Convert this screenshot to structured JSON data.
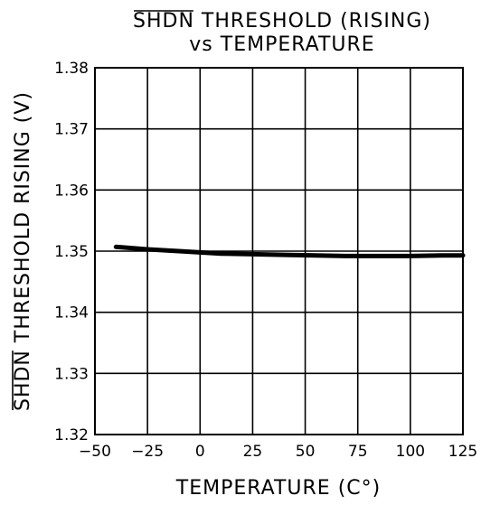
{
  "chart_data": {
    "type": "line",
    "title_overbar": "SHDN",
    "title_line1_rest": " THRESHOLD (RISING)",
    "title_line2": "vs TEMPERATURE",
    "xlabel": "TEMPERATURE (C°)",
    "ylabel_overbar": "SHDN",
    "ylabel_rest": " THRESHOLD RISING (V)",
    "xlim": [
      -50,
      125
    ],
    "ylim": [
      1.32,
      1.38
    ],
    "x_ticks": [
      -50,
      -25,
      0,
      25,
      50,
      75,
      100,
      125
    ],
    "x_tick_labels": [
      "−50",
      "−25",
      "0",
      "25",
      "50",
      "75",
      "100",
      "125"
    ],
    "y_ticks": [
      1.32,
      1.33,
      1.34,
      1.35,
      1.36,
      1.37,
      1.38
    ],
    "y_tick_labels": [
      "1.32",
      "1.33",
      "1.34",
      "1.35",
      "1.36",
      "1.37",
      "1.38"
    ],
    "grid": true,
    "series": [
      {
        "x": [
          -40,
          -25,
          -10,
          0,
          10,
          25,
          40,
          55,
          70,
          85,
          100,
          115,
          125
        ],
        "y": [
          1.3507,
          1.3503,
          1.35,
          1.3498,
          1.3496,
          1.3495,
          1.3494,
          1.3493,
          1.3492,
          1.3492,
          1.3492,
          1.3493,
          1.3493
        ]
      }
    ]
  }
}
